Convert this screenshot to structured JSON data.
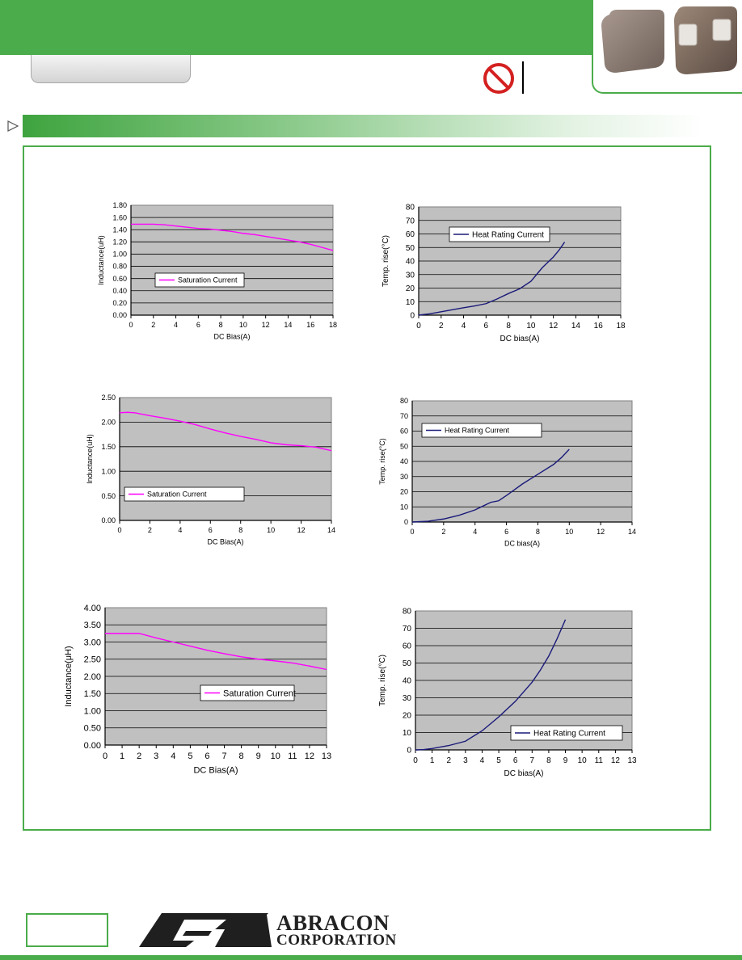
{
  "header": {
    "tab_label": "",
    "photo": "inductor-component-photo",
    "restriction_icon": "prohibited-circle-icon"
  },
  "section_banner": {
    "arrow_icon": "triangle-arrow-icon"
  },
  "footer": {
    "company_name": "ABRACON",
    "company_sub": "CORPORATION"
  },
  "chart_data": [
    {
      "id": "c1",
      "type": "line",
      "xlabel": "DC Bias(A)",
      "ylabel": "Inductance(uH)",
      "xlim": [
        0,
        18
      ],
      "ylim": [
        0,
        1.8
      ],
      "xticks": [
        0,
        2,
        4,
        6,
        8,
        10,
        12,
        14,
        16,
        18
      ],
      "xtick_labels": [
        "0",
        "2",
        "4",
        "6",
        "8",
        "10",
        "12",
        "14",
        "16",
        "18"
      ],
      "yticks": [
        0,
        0.2,
        0.4,
        0.6,
        0.8,
        1.0,
        1.2,
        1.4,
        1.6,
        1.8
      ],
      "ytick_labels": [
        "0.00",
        "0.20",
        "0.40",
        "0.60",
        "0.80",
        "1.00",
        "1.20",
        "1.40",
        "1.60",
        "1.80"
      ],
      "grid": true,
      "legend_position": "middle-left",
      "series": [
        {
          "name": "Saturation Current",
          "color": "#ff00ff",
          "x": [
            0,
            1,
            2,
            3,
            4,
            5,
            6,
            7,
            8,
            9,
            10,
            11,
            12,
            13,
            14,
            15,
            16,
            17,
            18
          ],
          "y": [
            1.49,
            1.49,
            1.49,
            1.48,
            1.46,
            1.44,
            1.42,
            1.41,
            1.39,
            1.37,
            1.34,
            1.32,
            1.29,
            1.26,
            1.23,
            1.2,
            1.16,
            1.11,
            1.06
          ]
        }
      ]
    },
    {
      "id": "c2",
      "type": "line",
      "xlabel": "DC bias(A)",
      "ylabel": "Temp. rise(°C)",
      "xlim": [
        0,
        18
      ],
      "ylim": [
        0,
        80
      ],
      "xticks": [
        0,
        2,
        4,
        6,
        8,
        10,
        12,
        14,
        16,
        18
      ],
      "xtick_labels": [
        "0",
        "2",
        "4",
        "6",
        "8",
        "10",
        "12",
        "14",
        "16",
        "18"
      ],
      "yticks": [
        0,
        10,
        20,
        30,
        40,
        50,
        60,
        70,
        80
      ],
      "ytick_labels": [
        "0",
        "10",
        "20",
        "30",
        "40",
        "50",
        "60",
        "70",
        "80"
      ],
      "grid": true,
      "legend_position": "top-center",
      "series": [
        {
          "name": "Heat Rating Current",
          "color": "#1a1a7a",
          "x": [
            0,
            1,
            2,
            3,
            4,
            5,
            6,
            7,
            8,
            9,
            10,
            10.5,
            11,
            11.5,
            12,
            12.5,
            13
          ],
          "y": [
            0,
            1,
            2.5,
            4,
            5.5,
            6.8,
            8.5,
            12,
            16,
            19.5,
            25,
            30,
            35,
            39,
            43,
            48,
            54
          ]
        }
      ]
    },
    {
      "id": "c3",
      "type": "line",
      "xlabel": "DC Bias(A)",
      "ylabel": "Inductance(uH)",
      "xlim": [
        0,
        14
      ],
      "ylim": [
        0,
        2.5
      ],
      "xticks": [
        0,
        2,
        4,
        6,
        8,
        10,
        12,
        14
      ],
      "xtick_labels": [
        "0",
        "2",
        "4",
        "6",
        "8",
        "10",
        "12",
        "14"
      ],
      "yticks": [
        0,
        0.5,
        1.0,
        1.5,
        2.0,
        2.5
      ],
      "ytick_labels": [
        "0.00",
        "0.50",
        "1.00",
        "1.50",
        "2.00",
        "2.50"
      ],
      "grid": true,
      "legend_position": "bottom-left",
      "series": [
        {
          "name": "Saturation Current",
          "color": "#ff00ff",
          "x": [
            0,
            0.5,
            1,
            2,
            3,
            4,
            5,
            6,
            7,
            8,
            9,
            10,
            11,
            12,
            13,
            14
          ],
          "y": [
            2.19,
            2.2,
            2.19,
            2.13,
            2.08,
            2.02,
            1.95,
            1.86,
            1.78,
            1.71,
            1.65,
            1.58,
            1.54,
            1.52,
            1.49,
            1.42
          ]
        }
      ]
    },
    {
      "id": "c4",
      "type": "line",
      "xlabel": "DC bias(A)",
      "ylabel": "Temp. rise(°C)",
      "xlim": [
        0,
        14
      ],
      "ylim": [
        0,
        80
      ],
      "xticks": [
        0,
        2,
        4,
        6,
        8,
        10,
        12,
        14
      ],
      "xtick_labels": [
        "0",
        "2",
        "4",
        "6",
        "8",
        "10",
        "12",
        "14"
      ],
      "yticks": [
        0,
        10,
        20,
        30,
        40,
        50,
        60,
        70,
        80
      ],
      "ytick_labels": [
        "0",
        "10",
        "20",
        "30",
        "40",
        "50",
        "60",
        "70",
        "80"
      ],
      "grid": true,
      "legend_position": "top-left",
      "series": [
        {
          "name": "Heat Rating Current",
          "color": "#1a1a7a",
          "x": [
            0,
            1,
            2,
            3,
            4,
            4.5,
            5,
            5.5,
            6,
            7,
            8,
            9,
            9.5,
            10
          ],
          "y": [
            0,
            0.5,
            2,
            4.5,
            8,
            10.5,
            13,
            14,
            17.5,
            25,
            31.5,
            38,
            42.5,
            48
          ]
        }
      ]
    },
    {
      "id": "c5",
      "type": "line",
      "xlabel": "DC Bias(A)",
      "ylabel": "Inductance(μH)",
      "xlim": [
        0,
        13
      ],
      "ylim": [
        0,
        4
      ],
      "xticks": [
        0,
        1,
        2,
        3,
        4,
        5,
        6,
        7,
        8,
        9,
        10,
        11,
        12,
        13
      ],
      "xtick_labels": [
        "0",
        "1",
        "2",
        "3",
        "4",
        "5",
        "6",
        "7",
        "8",
        "9",
        "10",
        "11",
        "12",
        "13"
      ],
      "yticks": [
        0,
        0.5,
        1.0,
        1.5,
        2.0,
        2.5,
        3.0,
        3.5,
        4.0
      ],
      "ytick_labels": [
        "0.00",
        "0.50",
        "1.00",
        "1.50",
        "2.00",
        "2.50",
        "3.00",
        "3.50",
        "4.00"
      ],
      "grid": true,
      "legend_position": "center-right",
      "series": [
        {
          "name": "Saturation Current",
          "color": "#ff00ff",
          "x": [
            0,
            1,
            2,
            3,
            4,
            5,
            6,
            7,
            8,
            9,
            10,
            11,
            12,
            13
          ],
          "y": [
            3.25,
            3.25,
            3.25,
            3.12,
            3.0,
            2.88,
            2.76,
            2.66,
            2.57,
            2.5,
            2.45,
            2.39,
            2.3,
            2.2
          ]
        }
      ]
    },
    {
      "id": "c6",
      "type": "line",
      "xlabel": "DC bias(A)",
      "ylabel": "Temp. rise(°C)",
      "xlim": [
        0,
        13
      ],
      "ylim": [
        0,
        80
      ],
      "xticks": [
        0,
        1,
        2,
        3,
        4,
        5,
        6,
        7,
        8,
        9,
        10,
        11,
        12,
        13
      ],
      "xtick_labels": [
        "0",
        "1",
        "2",
        "3",
        "4",
        "5",
        "6",
        "7",
        "8",
        "9",
        "10",
        "11",
        "12",
        "13"
      ],
      "yticks": [
        0,
        10,
        20,
        30,
        40,
        50,
        60,
        70,
        80
      ],
      "ytick_labels": [
        "0",
        "10",
        "20",
        "30",
        "40",
        "50",
        "60",
        "70",
        "80"
      ],
      "grid": true,
      "legend_position": "bottom-right",
      "series": [
        {
          "name": "Heat Rating Current",
          "color": "#1a1a7a",
          "x": [
            0,
            0.5,
            1,
            2,
            3,
            4,
            5,
            6,
            7,
            7.5,
            8,
            8.5,
            9
          ],
          "y": [
            0,
            0.2,
            0.8,
            2.5,
            5,
            11,
            19,
            28,
            39,
            46,
            54,
            64,
            75
          ]
        }
      ]
    }
  ]
}
